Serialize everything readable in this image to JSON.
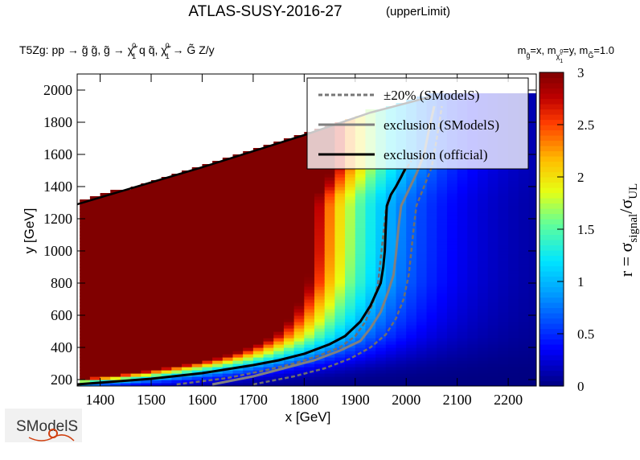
{
  "chart_data": {
    "type": "heatmap",
    "title": "ATLAS-SUSY-2016-27",
    "title_suffix": "(upperLimit)",
    "process": {
      "prefix": "T5Zg: pp ",
      "text_1": " g̃ g̃, g̃ ",
      "chi": "χ̃",
      "chi_sup": "0",
      "chi_sub": "1",
      "text_2": " q q̃, ",
      "text_3": " ",
      "text_4": " G̃ Z/y"
    },
    "mass_label": {
      "m": "m",
      "gluino_sub": "g̃",
      "eq_x": "=x, m",
      "chi_sub": "χ̃",
      "chi_sup": "0",
      "chi_subsub": "1",
      "eq_y": "=y, m",
      "gravitino_sub": "G̃",
      "eq_val": "=1.0"
    },
    "xlabel": "x [GeV]",
    "ylabel": "y [GeV]",
    "xlim": [
      1355,
      2255
    ],
    "ylim": [
      160,
      2100
    ],
    "xticks": [
      1400,
      1500,
      1600,
      1700,
      1800,
      1900,
      2000,
      2100,
      2200
    ],
    "yticks": [
      200,
      400,
      600,
      800,
      1000,
      1200,
      1400,
      1600,
      1800,
      2000
    ],
    "colorbar": {
      "label_main": "r = σ",
      "label_sub_1": "signal",
      "label_mid": "/σ",
      "label_sub_2": "UL",
      "range": [
        0,
        3
      ],
      "ticks": [
        "0",
        "0.5",
        "1",
        "1.5",
        "2",
        "2.5",
        "3"
      ]
    },
    "legend": {
      "placement": "top-right",
      "entries": [
        {
          "label": "±20% (SModelS)",
          "style": "dotted",
          "color": "#777777"
        },
        {
          "label": "exclusion (SModelS)",
          "style": "solid",
          "color": "#808080"
        },
        {
          "label": "exclusion (official)",
          "style": "solid",
          "color": "#000000"
        }
      ]
    },
    "grid": false,
    "exclusion_official": [
      [
        1355,
        170
      ],
      [
        1500,
        205
      ],
      [
        1600,
        240
      ],
      [
        1700,
        290
      ],
      [
        1750,
        320
      ],
      [
        1800,
        360
      ],
      [
        1850,
        420
      ],
      [
        1880,
        470
      ],
      [
        1910,
        560
      ],
      [
        1930,
        660
      ],
      [
        1950,
        800
      ],
      [
        1955,
        900
      ],
      [
        1958,
        1000
      ],
      [
        1960,
        1150
      ],
      [
        1962,
        1280
      ],
      [
        1970,
        1350
      ],
      [
        1980,
        1400
      ],
      [
        1990,
        1460
      ],
      [
        1998,
        1510
      ]
    ],
    "exclusion_smodels": [
      [
        1620,
        170
      ],
      [
        1700,
        220
      ],
      [
        1760,
        270
      ],
      [
        1820,
        320
      ],
      [
        1870,
        380
      ],
      [
        1910,
        440
      ],
      [
        1930,
        520
      ],
      [
        1950,
        620
      ],
      [
        1965,
        750
      ],
      [
        1975,
        850
      ],
      [
        1980,
        980
      ],
      [
        1985,
        1150
      ],
      [
        1990,
        1280
      ],
      [
        2005,
        1380
      ],
      [
        2020,
        1480
      ],
      [
        2035,
        1600
      ],
      [
        2045,
        1760
      ],
      [
        2055,
        1900
      ]
    ],
    "exclusion_plus20": [
      [
        1550,
        170
      ],
      [
        1650,
        210
      ],
      [
        1720,
        255
      ],
      [
        1780,
        300
      ],
      [
        1830,
        350
      ],
      [
        1870,
        400
      ],
      [
        1900,
        470
      ],
      [
        1920,
        560
      ],
      [
        1935,
        680
      ],
      [
        1945,
        800
      ],
      [
        1950,
        950
      ],
      [
        1955,
        1100
      ],
      [
        1960,
        1250
      ],
      [
        1972,
        1360
      ],
      [
        1990,
        1460
      ],
      [
        2010,
        1560
      ]
    ],
    "exclusion_minus20": [
      [
        1700,
        170
      ],
      [
        1780,
        220
      ],
      [
        1840,
        270
      ],
      [
        1890,
        330
      ],
      [
        1930,
        400
      ],
      [
        1960,
        480
      ],
      [
        1980,
        580
      ],
      [
        1995,
        700
      ],
      [
        2005,
        850
      ],
      [
        2010,
        1000
      ],
      [
        2015,
        1150
      ],
      [
        2020,
        1280
      ],
      [
        2035,
        1400
      ],
      [
        2050,
        1520
      ],
      [
        2060,
        1700
      ],
      [
        2070,
        1900
      ]
    ],
    "kinematic_edge": [
      [
        1355,
        1290
      ],
      [
        1600,
        1520
      ],
      [
        1800,
        1720
      ],
      [
        1930,
        1860
      ],
      [
        2050,
        1960
      ]
    ]
  }
}
